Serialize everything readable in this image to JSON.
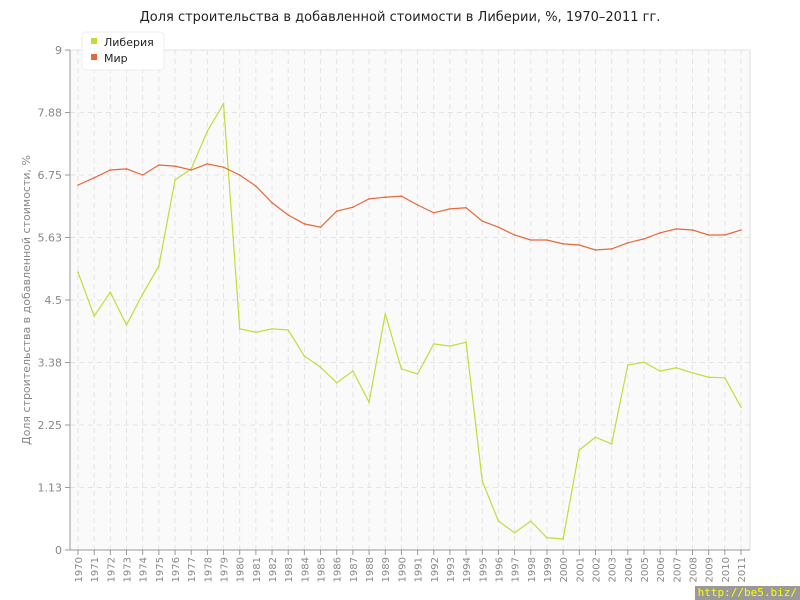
{
  "chart_data": {
    "type": "line",
    "title": "Доля строительства в добавленной стоимости в Либерии, %, 1970–2011 гг.",
    "xlabel": "",
    "ylabel": "Доля строительства в добавленной стоимости, %",
    "ylim": [
      0,
      9
    ],
    "yticks": [
      "0",
      "1.13",
      "2.25",
      "3.38",
      "4.5",
      "5.63",
      "6.75",
      "7.88",
      "9"
    ],
    "grid": true,
    "legend_position": "top-left",
    "x": [
      1970,
      1971,
      1972,
      1973,
      1974,
      1975,
      1976,
      1977,
      1978,
      1979,
      1980,
      1981,
      1982,
      1983,
      1984,
      1985,
      1986,
      1987,
      1988,
      1989,
      1990,
      1991,
      1992,
      1993,
      1994,
      1995,
      1996,
      1997,
      1998,
      1999,
      2000,
      2001,
      2002,
      2003,
      2004,
      2005,
      2006,
      2007,
      2008,
      2009,
      2010,
      2011
    ],
    "series": [
      {
        "name": "Либерия",
        "color": "#bede3a",
        "values": [
          5.0,
          4.21,
          4.64,
          4.05,
          4.61,
          5.11,
          6.66,
          6.86,
          7.54,
          8.03,
          3.98,
          3.92,
          3.98,
          3.96,
          3.49,
          3.29,
          3.01,
          3.22,
          2.66,
          4.25,
          3.26,
          3.17,
          3.71,
          3.67,
          3.74,
          1.24,
          0.52,
          0.31,
          0.52,
          0.22,
          0.2,
          1.8,
          2.03,
          1.91,
          3.33,
          3.38,
          3.22,
          3.28,
          3.19,
          3.11,
          3.1,
          2.57
        ]
      },
      {
        "name": "Мир",
        "color": "#e8683a",
        "values": [
          6.57,
          6.7,
          6.84,
          6.86,
          6.75,
          6.93,
          6.91,
          6.84,
          6.95,
          6.89,
          6.75,
          6.55,
          6.25,
          6.03,
          5.87,
          5.81,
          6.1,
          6.17,
          6.32,
          6.35,
          6.37,
          6.21,
          6.07,
          6.14,
          6.16,
          5.92,
          5.81,
          5.67,
          5.58,
          5.58,
          5.51,
          5.49,
          5.4,
          5.42,
          5.53,
          5.6,
          5.71,
          5.78,
          5.76,
          5.67,
          5.67,
          5.76
        ]
      }
    ]
  },
  "watermark": "http://be5.biz/"
}
